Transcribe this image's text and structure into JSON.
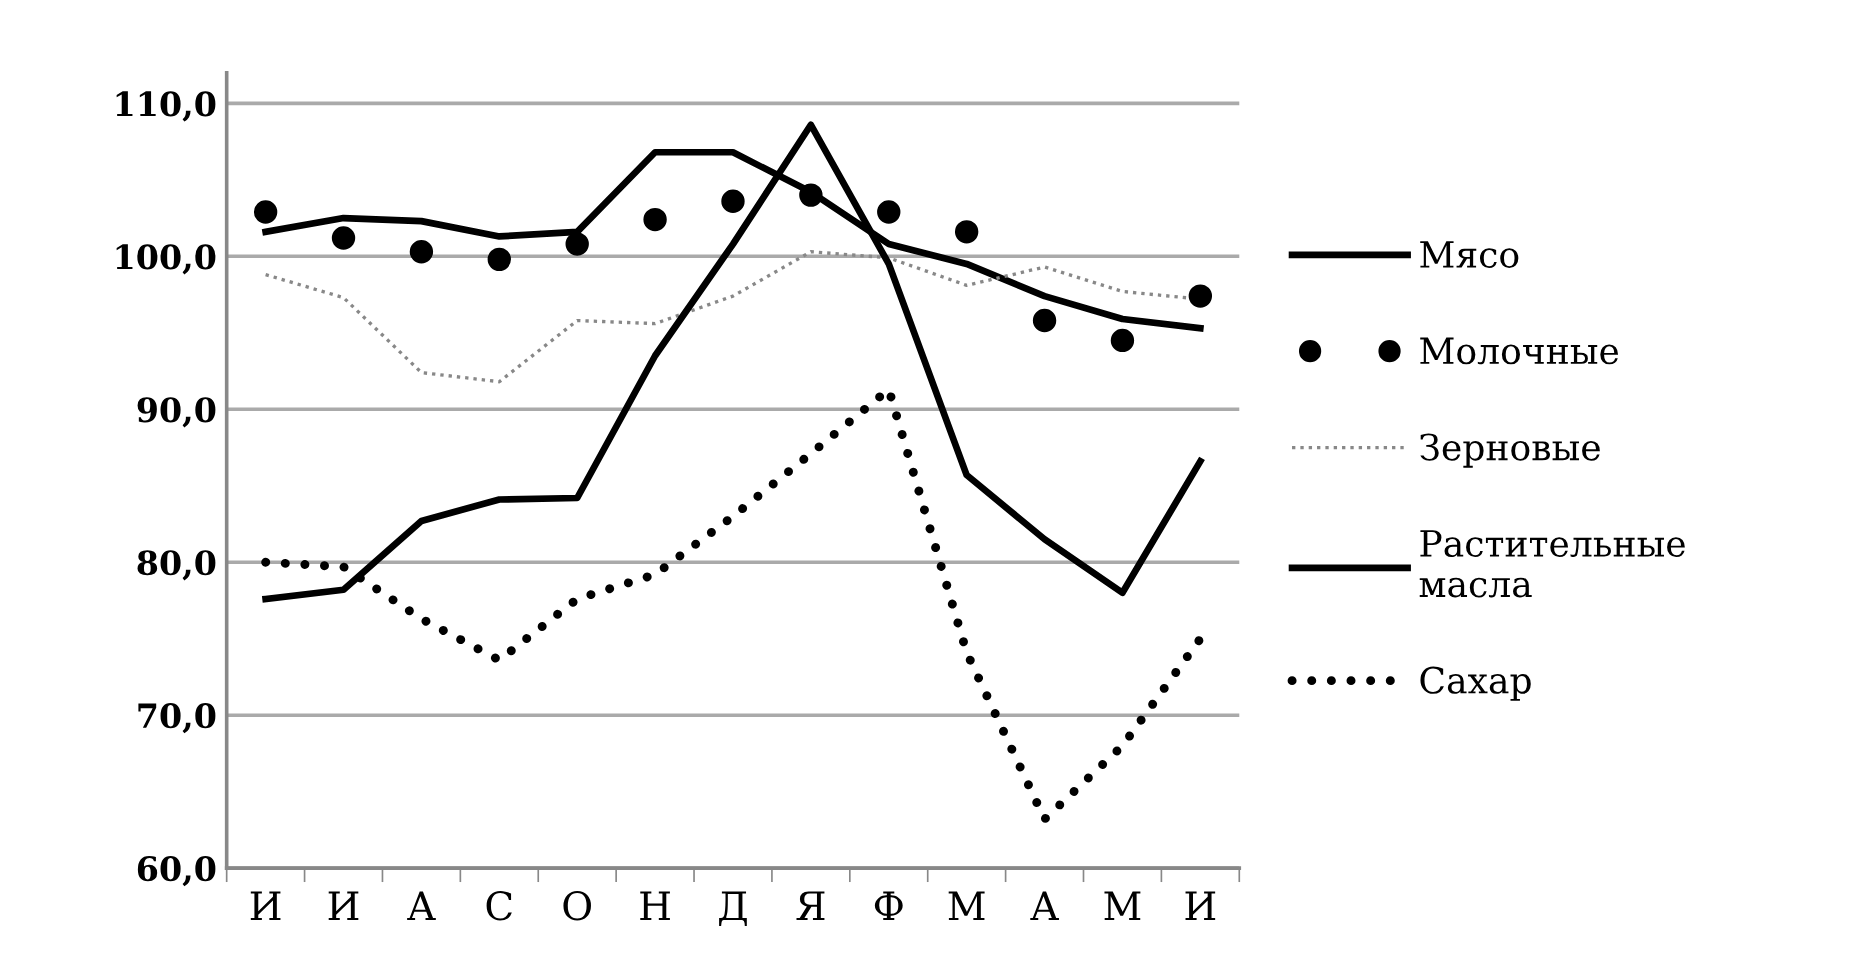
{
  "chart_data": {
    "type": "line",
    "categories": [
      "И",
      "И",
      "А",
      "С",
      "О",
      "Н",
      "Д",
      "Я",
      "Ф",
      "М",
      "А",
      "М",
      "И"
    ],
    "series": [
      {
        "name": "Мясо",
        "color": "#000000",
        "line_style": "solid",
        "values": [
          101.6,
          102.5,
          102.3,
          101.3,
          101.6,
          106.8,
          106.8,
          104.2,
          100.8,
          99.5,
          97.4,
          95.9,
          95.3
        ]
      },
      {
        "name": "Молочные",
        "type": "scatter",
        "marker": "circle",
        "color": "#000000",
        "values": [
          102.9,
          101.2,
          100.3,
          99.8,
          100.8,
          102.4,
          103.6,
          104.0,
          102.9,
          101.6,
          95.8,
          94.5,
          97.4
        ]
      },
      {
        "name": "Зерновые",
        "color": "#888888",
        "line_style": "dotted",
        "values": [
          98.8,
          97.3,
          92.4,
          91.8,
          95.8,
          95.6,
          97.4,
          100.3,
          99.9,
          98.1,
          99.3,
          97.7,
          97.2
        ]
      },
      {
        "name": "Растительные\nмасла",
        "color": "#000000",
        "line_style": "solid",
        "values": [
          77.6,
          78.2,
          82.7,
          84.1,
          84.2,
          93.5,
          100.8,
          108.6,
          99.5,
          85.7,
          81.5,
          78.0,
          86.6
        ]
      },
      {
        "name": "Сахар",
        "color": "#000000",
        "line_style": "dotted",
        "values": [
          80.0,
          79.7,
          76.3,
          73.6,
          77.6,
          79.2,
          83.0,
          87.1,
          91.3,
          74.1,
          63.2,
          68.0,
          75.0
        ]
      }
    ],
    "ylim": [
      60,
      112
    ],
    "yticks": [
      {
        "value": 60,
        "label": "60,0"
      },
      {
        "value": 70,
        "label": "70,0"
      },
      {
        "value": 80,
        "label": "80,0"
      },
      {
        "value": 90,
        "label": "90,0"
      },
      {
        "value": 100,
        "label": "100,0"
      },
      {
        "value": 110,
        "label": "110,0"
      }
    ],
    "grid": "y",
    "legend": "right"
  }
}
